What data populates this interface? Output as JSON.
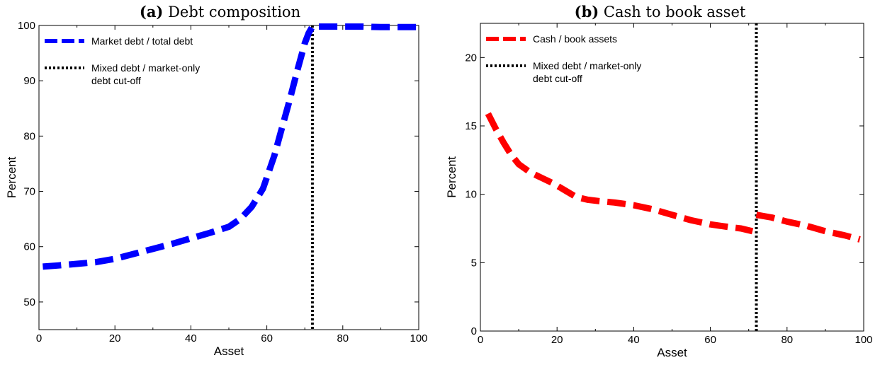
{
  "chart_data": [
    {
      "type": "line",
      "panel_label": "(a)",
      "title": "Debt composition",
      "xlabel": "Asset",
      "ylabel": "Percent",
      "xlim": [
        0,
        100
      ],
      "ylim": [
        45,
        100
      ],
      "xticks": [
        0,
        20,
        40,
        60,
        80,
        100
      ],
      "yticks": [
        50,
        60,
        70,
        80,
        90,
        100
      ],
      "xtick_labels": [
        "0",
        "20",
        "40",
        "60",
        "80",
        "100"
      ],
      "ytick_labels": [
        "50",
        "60",
        "70",
        "80",
        "90",
        "100"
      ],
      "grid": false,
      "legend_position": "top-left",
      "series": [
        {
          "name": "Market debt / total debt",
          "color": "#0000ff",
          "style": "dashed",
          "x": [
            1,
            5,
            10,
            15,
            20,
            25,
            30,
            35,
            40,
            45,
            50,
            53,
            56,
            59,
            62,
            64,
            66,
            68,
            70,
            71,
            72,
            75,
            80,
            85,
            90,
            95,
            100
          ],
          "y": [
            56.4,
            56.6,
            56.9,
            57.2,
            57.8,
            58.7,
            59.6,
            60.5,
            61.5,
            62.5,
            63.6,
            65.0,
            67.2,
            70.5,
            76.5,
            81.5,
            86.5,
            91.8,
            96.8,
            98.6,
            99.8,
            99.8,
            99.8,
            99.8,
            99.7,
            99.7,
            99.7
          ]
        }
      ],
      "vline": {
        "name": "Mixed debt / market-only debt cut-off",
        "legend_lines": [
          "Mixed debt / market-only",
          "debt cut-off"
        ],
        "x": 72,
        "color": "#000000",
        "style": "dotted"
      }
    },
    {
      "type": "line",
      "panel_label": "(b)",
      "title": "Cash to book asset",
      "xlabel": "Asset",
      "ylabel": "Percent",
      "xlim": [
        0,
        100
      ],
      "ylim": [
        0,
        22.5
      ],
      "xticks": [
        0,
        20,
        40,
        60,
        80,
        100
      ],
      "yticks": [
        0,
        5,
        10,
        15,
        20
      ],
      "xtick_labels": [
        "0",
        "20",
        "40",
        "60",
        "80",
        "100"
      ],
      "ytick_labels": [
        "0",
        "5",
        "10",
        "15",
        "20"
      ],
      "grid": false,
      "legend_position": "top-left",
      "series": [
        {
          "name": "Cash / book assets",
          "color": "#ff0000",
          "style": "dashed",
          "segments": [
            {
              "x": [
                2,
                4,
                6,
                8,
                10,
                13,
                16,
                19,
                22,
                25,
                28,
                31,
                35,
                40,
                45,
                50,
                55,
                60,
                65,
                68,
                71
              ],
              "y": [
                15.9,
                14.8,
                13.8,
                12.9,
                12.2,
                11.6,
                11.2,
                10.8,
                10.3,
                9.8,
                9.6,
                9.5,
                9.4,
                9.2,
                8.9,
                8.5,
                8.1,
                7.8,
                7.6,
                7.5,
                7.3
              ]
            },
            {
              "x": [
                72,
                76,
                80,
                85,
                90,
                95,
                99
              ],
              "y": [
                8.5,
                8.3,
                8.0,
                7.7,
                7.3,
                7.0,
                6.7
              ]
            }
          ]
        }
      ],
      "vline": {
        "name": "Mixed debt / market-only debt cut-off",
        "legend_lines": [
          "Mixed debt / market-only",
          "debt cut-off"
        ],
        "x": 72,
        "color": "#000000",
        "style": "dotted"
      }
    }
  ]
}
